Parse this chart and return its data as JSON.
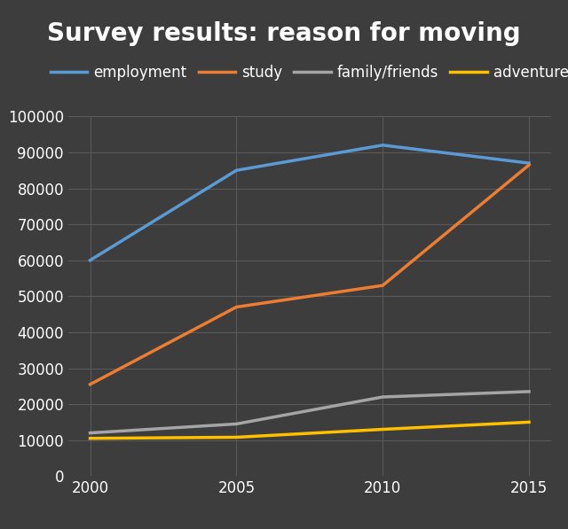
{
  "title": "Survey results: reason for moving",
  "years": [
    2000,
    2005,
    2010,
    2015
  ],
  "series": [
    {
      "label": "employment",
      "color": "#5b9bd5",
      "values": [
        60000,
        85000,
        92000,
        87000
      ]
    },
    {
      "label": "study",
      "color": "#ed7d31",
      "values": [
        25500,
        47000,
        53000,
        86500
      ]
    },
    {
      "label": "family/friends",
      "color": "#a5a5a5",
      "values": [
        12000,
        14500,
        22000,
        23500
      ]
    },
    {
      "label": "adventure",
      "color": "#ffc000",
      "values": [
        10500,
        10800,
        13000,
        15000
      ]
    }
  ],
  "background_color": "#3d3d3d",
  "plot_bg_color": "#3d3d3d",
  "text_color": "#ffffff",
  "grid_color": "#5a5a5a",
  "ylim": [
    0,
    100000
  ],
  "yticks": [
    0,
    10000,
    20000,
    30000,
    40000,
    50000,
    60000,
    70000,
    80000,
    90000,
    100000
  ],
  "xticks": [
    2000,
    2005,
    2010,
    2015
  ],
  "title_fontsize": 20,
  "legend_fontsize": 12,
  "tick_fontsize": 12,
  "line_width": 2.5
}
